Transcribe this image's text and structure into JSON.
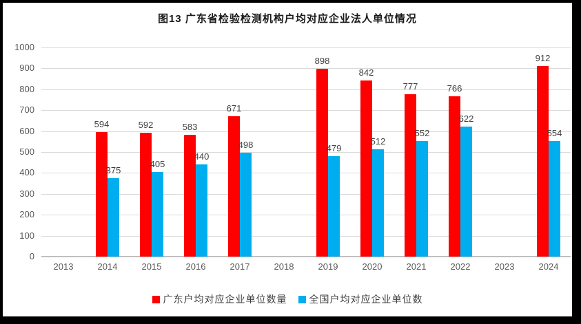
{
  "title": "图13 广东省检验检测机构户均对应企业法人单位情况",
  "colors": {
    "series_guangdong": "#fe0000",
    "series_national": "#00aeef",
    "gridline": "#d9d9d9",
    "axis_line": "#bfbfbf",
    "value_label_text": "#404040",
    "tick_text": "#595959",
    "frame": "#000000",
    "background": "#ffffff"
  },
  "chart_data": {
    "type": "bar",
    "title": "图13 广东省检验检测机构户均对应企业法人单位情况",
    "categories": [
      "2013",
      "2014",
      "2015",
      "2016",
      "2017",
      "2018",
      "2019",
      "2020",
      "2021",
      "2022",
      "2023",
      "2024"
    ],
    "series": [
      {
        "name": "广东户均对应企业单位数量",
        "color": "#fe0000",
        "values": [
          null,
          594,
          592,
          583,
          671,
          null,
          898,
          842,
          777,
          766,
          null,
          912
        ]
      },
      {
        "name": "全国户均对应企业单位数",
        "color": "#00aeef",
        "values": [
          null,
          375,
          405,
          440,
          498,
          null,
          479,
          512,
          552,
          622,
          null,
          554
        ]
      }
    ],
    "xlabel": "",
    "ylabel": "",
    "ylim": [
      0,
      1000
    ],
    "yticks": [
      0,
      100,
      200,
      300,
      400,
      500,
      600,
      700,
      800,
      900,
      1000
    ],
    "grid": true,
    "legend_position": "bottom",
    "data_labels": true
  }
}
